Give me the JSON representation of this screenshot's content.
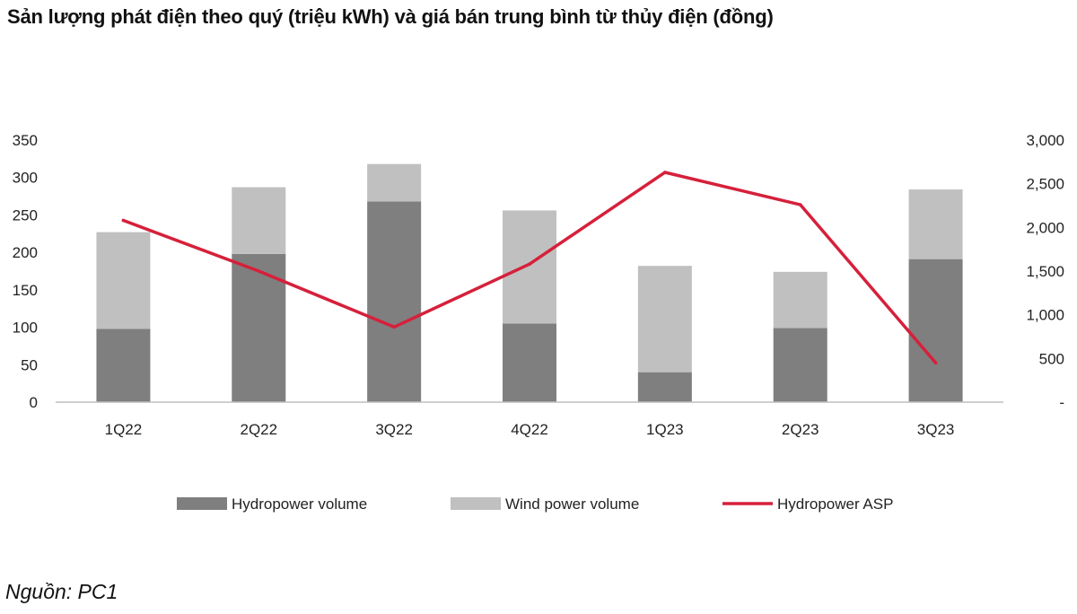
{
  "title": "Sản lượng phát điện theo quý (triệu kWh) và giá bán trung bình từ thủy điện (đồng)",
  "source": "Nguồn: PC1",
  "chart_data": {
    "type": "bar",
    "stacked": true,
    "categories": [
      "1Q22",
      "2Q22",
      "3Q22",
      "4Q22",
      "1Q23",
      "2Q23",
      "3Q23"
    ],
    "series": [
      {
        "name": "Hydropower volume",
        "kind": "bar",
        "axis": "left",
        "color": "#7f7f7f",
        "values": [
          98,
          198,
          268,
          105,
          40,
          99,
          191
        ]
      },
      {
        "name": "Wind power volume",
        "kind": "bar",
        "axis": "left",
        "color": "#c0c0c0",
        "values": [
          129,
          89,
          50,
          151,
          142,
          75,
          93
        ]
      },
      {
        "name": "Hydropower ASP",
        "kind": "line",
        "axis": "right",
        "color": "#d6203b",
        "values": [
          2080,
          1500,
          860,
          1580,
          2630,
          2260,
          450
        ]
      }
    ],
    "left_axis": {
      "min": 0,
      "max": 350,
      "step": 50,
      "tick_labels": [
        "0",
        "50",
        "100",
        "150",
        "200",
        "250",
        "300",
        "350"
      ]
    },
    "right_axis": {
      "min": 0,
      "max": 3000,
      "step": 500,
      "tick_labels": [
        "-",
        "500",
        "1,000",
        "1,500",
        "2,000",
        "2,500",
        "3,000"
      ]
    },
    "grid": false,
    "legend_position": "bottom"
  }
}
